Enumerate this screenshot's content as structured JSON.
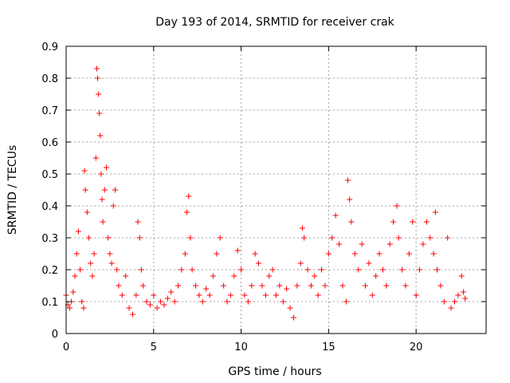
{
  "chart_data": {
    "type": "scatter",
    "title": "Day 193 of 2014, SRMTID for receiver crak",
    "xlabel": "GPS time / hours",
    "ylabel": "SRMTID / TECUs",
    "xlim": [
      0,
      24
    ],
    "ylim": [
      0,
      0.9
    ],
    "xticks": [
      0,
      5,
      10,
      15,
      20
    ],
    "yticks": [
      0,
      0.1,
      0.2,
      0.3,
      0.4,
      0.5,
      0.6,
      0.7,
      0.8,
      0.9
    ],
    "grid": true,
    "marker": "plus",
    "color": "#ff0000",
    "series": [
      {
        "name": "SRMTID",
        "points": [
          [
            0.0,
            0.12
          ],
          [
            0.1,
            0.09
          ],
          [
            0.2,
            0.08
          ],
          [
            0.3,
            0.1
          ],
          [
            0.4,
            0.13
          ],
          [
            0.5,
            0.18
          ],
          [
            0.6,
            0.25
          ],
          [
            0.7,
            0.32
          ],
          [
            0.8,
            0.2
          ],
          [
            0.9,
            0.1
          ],
          [
            1.0,
            0.08
          ],
          [
            1.05,
            0.51
          ],
          [
            1.1,
            0.45
          ],
          [
            1.2,
            0.38
          ],
          [
            1.3,
            0.3
          ],
          [
            1.4,
            0.22
          ],
          [
            1.5,
            0.18
          ],
          [
            1.6,
            0.25
          ],
          [
            1.7,
            0.55
          ],
          [
            1.75,
            0.83
          ],
          [
            1.8,
            0.8
          ],
          [
            1.85,
            0.75
          ],
          [
            1.9,
            0.69
          ],
          [
            1.95,
            0.62
          ],
          [
            2.0,
            0.5
          ],
          [
            2.05,
            0.42
          ],
          [
            2.1,
            0.35
          ],
          [
            2.2,
            0.45
          ],
          [
            2.3,
            0.52
          ],
          [
            2.4,
            0.3
          ],
          [
            2.5,
            0.25
          ],
          [
            2.6,
            0.22
          ],
          [
            2.7,
            0.4
          ],
          [
            2.8,
            0.45
          ],
          [
            2.9,
            0.2
          ],
          [
            3.0,
            0.15
          ],
          [
            3.2,
            0.12
          ],
          [
            3.4,
            0.18
          ],
          [
            3.6,
            0.08
          ],
          [
            3.8,
            0.06
          ],
          [
            4.0,
            0.12
          ],
          [
            4.1,
            0.35
          ],
          [
            4.2,
            0.3
          ],
          [
            4.3,
            0.2
          ],
          [
            4.4,
            0.15
          ],
          [
            4.6,
            0.1
          ],
          [
            4.8,
            0.09
          ],
          [
            5.0,
            0.12
          ],
          [
            5.2,
            0.08
          ],
          [
            5.4,
            0.1
          ],
          [
            5.6,
            0.09
          ],
          [
            5.8,
            0.11
          ],
          [
            6.0,
            0.13
          ],
          [
            6.2,
            0.1
          ],
          [
            6.4,
            0.15
          ],
          [
            6.6,
            0.2
          ],
          [
            6.8,
            0.25
          ],
          [
            6.9,
            0.38
          ],
          [
            7.0,
            0.43
          ],
          [
            7.1,
            0.3
          ],
          [
            7.2,
            0.2
          ],
          [
            7.4,
            0.15
          ],
          [
            7.6,
            0.12
          ],
          [
            7.8,
            0.1
          ],
          [
            8.0,
            0.14
          ],
          [
            8.2,
            0.12
          ],
          [
            8.4,
            0.18
          ],
          [
            8.6,
            0.25
          ],
          [
            8.8,
            0.3
          ],
          [
            9.0,
            0.15
          ],
          [
            9.2,
            0.1
          ],
          [
            9.4,
            0.12
          ],
          [
            9.6,
            0.18
          ],
          [
            9.8,
            0.26
          ],
          [
            10.0,
            0.2
          ],
          [
            10.2,
            0.12
          ],
          [
            10.4,
            0.1
          ],
          [
            10.6,
            0.15
          ],
          [
            10.8,
            0.25
          ],
          [
            11.0,
            0.22
          ],
          [
            11.2,
            0.15
          ],
          [
            11.4,
            0.12
          ],
          [
            11.6,
            0.18
          ],
          [
            11.8,
            0.2
          ],
          [
            12.0,
            0.12
          ],
          [
            12.2,
            0.15
          ],
          [
            12.4,
            0.1
          ],
          [
            12.6,
            0.14
          ],
          [
            12.8,
            0.08
          ],
          [
            13.0,
            0.05
          ],
          [
            13.2,
            0.15
          ],
          [
            13.4,
            0.22
          ],
          [
            13.5,
            0.33
          ],
          [
            13.6,
            0.3
          ],
          [
            13.8,
            0.2
          ],
          [
            14.0,
            0.15
          ],
          [
            14.2,
            0.18
          ],
          [
            14.4,
            0.12
          ],
          [
            14.6,
            0.2
          ],
          [
            14.8,
            0.15
          ],
          [
            15.0,
            0.25
          ],
          [
            15.2,
            0.3
          ],
          [
            15.4,
            0.37
          ],
          [
            15.6,
            0.28
          ],
          [
            15.8,
            0.15
          ],
          [
            16.0,
            0.1
          ],
          [
            16.1,
            0.48
          ],
          [
            16.2,
            0.42
          ],
          [
            16.3,
            0.35
          ],
          [
            16.5,
            0.25
          ],
          [
            16.7,
            0.2
          ],
          [
            16.9,
            0.28
          ],
          [
            17.1,
            0.15
          ],
          [
            17.3,
            0.22
          ],
          [
            17.5,
            0.12
          ],
          [
            17.7,
            0.18
          ],
          [
            17.9,
            0.25
          ],
          [
            18.1,
            0.2
          ],
          [
            18.3,
            0.15
          ],
          [
            18.5,
            0.28
          ],
          [
            18.7,
            0.35
          ],
          [
            18.9,
            0.4
          ],
          [
            19.0,
            0.3
          ],
          [
            19.2,
            0.2
          ],
          [
            19.4,
            0.15
          ],
          [
            19.6,
            0.25
          ],
          [
            19.8,
            0.35
          ],
          [
            20.0,
            0.12
          ],
          [
            20.2,
            0.2
          ],
          [
            20.4,
            0.28
          ],
          [
            20.6,
            0.35
          ],
          [
            20.8,
            0.3
          ],
          [
            21.0,
            0.25
          ],
          [
            21.1,
            0.38
          ],
          [
            21.2,
            0.2
          ],
          [
            21.4,
            0.15
          ],
          [
            21.6,
            0.1
          ],
          [
            21.8,
            0.3
          ],
          [
            22.0,
            0.08
          ],
          [
            22.2,
            0.1
          ],
          [
            22.4,
            0.12
          ],
          [
            22.6,
            0.18
          ],
          [
            22.7,
            0.13
          ],
          [
            22.8,
            0.11
          ]
        ]
      }
    ]
  }
}
